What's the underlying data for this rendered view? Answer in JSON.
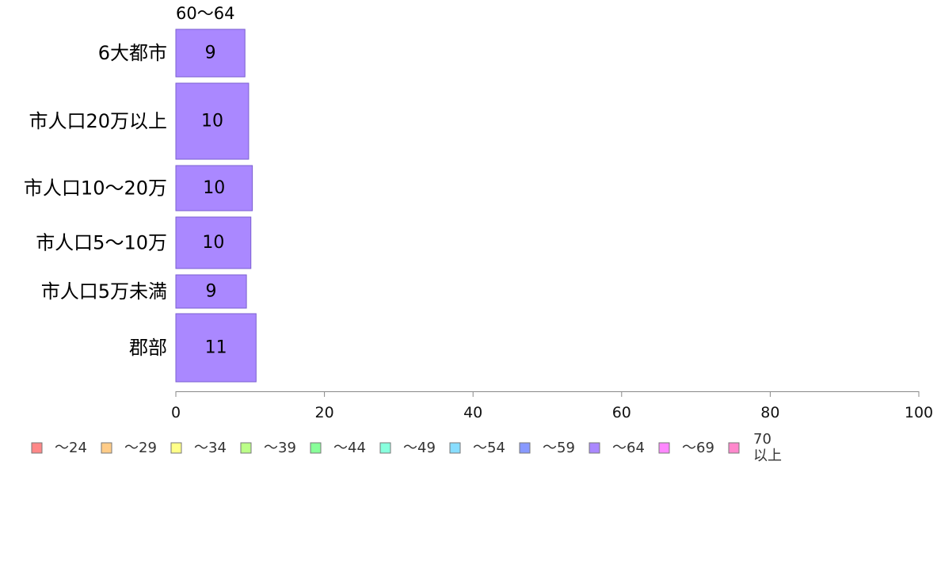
{
  "chart_data": {
    "type": "bar",
    "orientation": "horizontal",
    "stacked": true,
    "title": "",
    "xlabel": "",
    "ylabel": "",
    "xlim": [
      0,
      100
    ],
    "x_ticks": [
      "0",
      "20",
      "40",
      "60",
      "80",
      "100"
    ],
    "grid": false,
    "legend_position": "bottom",
    "shown_segment_label": "60〜64",
    "categories": [
      "6大都市",
      "市人口20万以上",
      "市人口10〜20万",
      "市人口5〜10万",
      "市人口5万未満",
      "郡部"
    ],
    "series": [
      {
        "name": "〜64",
        "color": "#aa88ff",
        "values": [
          9.3,
          9.8,
          10.3,
          10.1,
          9.5,
          10.8
        ],
        "labels": [
          "9",
          "10",
          "10",
          "10",
          "9",
          "11"
        ]
      }
    ],
    "legend": [
      {
        "label": "〜24",
        "color": "#ff8888"
      },
      {
        "label": "〜29",
        "color": "#ffcc88"
      },
      {
        "label": "〜34",
        "color": "#ffff88"
      },
      {
        "label": "〜39",
        "color": "#bbff88"
      },
      {
        "label": "〜44",
        "color": "#88ff99"
      },
      {
        "label": "〜49",
        "color": "#88ffdd"
      },
      {
        "label": "〜54",
        "color": "#88ddff"
      },
      {
        "label": "〜59",
        "color": "#8899ff"
      },
      {
        "label": "〜64",
        "color": "#aa88ff"
      },
      {
        "label": "〜69",
        "color": "#ff88ff"
      },
      {
        "label": "70\n以上",
        "color": "#ff88cc"
      }
    ]
  }
}
